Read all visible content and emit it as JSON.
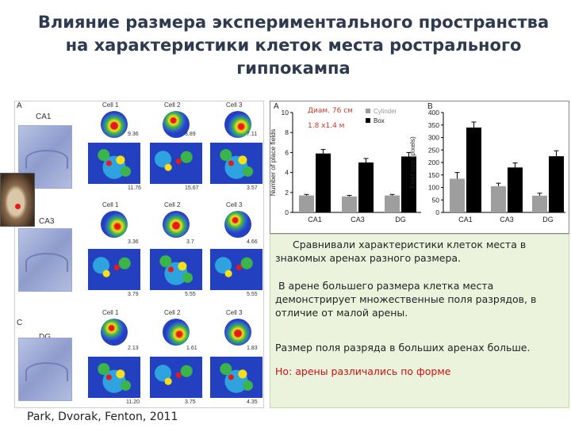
{
  "title_lines": [
    "Влияние размера экспериментального пространства",
    "на характеристики клеток места ростральнoго",
    "гиппокампа"
  ],
  "figure_left": {
    "panel_letters": [
      "A",
      "B",
      "C"
    ],
    "regions": [
      "CA1",
      "CA3",
      "DG"
    ],
    "cell_labels": [
      "Cell 1",
      "Cell 2",
      "Cell 3"
    ],
    "rows": [
      {
        "small_rates": [
          "9.36",
          "3.89",
          "7.11"
        ],
        "large_rates": [
          "11.76",
          "15.67",
          "3.57"
        ]
      },
      {
        "small_rates": [
          "3.36",
          "3.7",
          "4.66"
        ],
        "large_rates": [
          "3.79",
          "5.55",
          "5.55"
        ]
      },
      {
        "small_rates": [
          "2.13",
          "1.61",
          "1.83"
        ],
        "large_rates": [
          "11.20",
          "3.75",
          "4.35"
        ]
      }
    ]
  },
  "citation": "Park, Dvorak, Fenton, 2011",
  "dimension_note": {
    "cylinder": "Диам. 76 см",
    "box": "1.8 х1.4 м"
  },
  "chart_data": [
    {
      "type": "bar",
      "panel": "A",
      "ylabel": "Number of place fields",
      "categories": [
        "CA1",
        "CA3",
        "DG"
      ],
      "ylim": [
        0,
        10
      ],
      "yticks": [
        "0",
        "2",
        "4",
        "6",
        "8",
        "10"
      ],
      "legend": [
        "Cylinder",
        "Box"
      ],
      "legend_position": "top-right",
      "series": [
        {
          "name": "Cylinder",
          "color": "#9e9e9e",
          "values": [
            1.7,
            1.6,
            1.7
          ],
          "errors": [
            0.1,
            0.1,
            0.1
          ]
        },
        {
          "name": "Box",
          "color": "#000000",
          "values": [
            5.9,
            5.0,
            5.6
          ],
          "errors": [
            0.4,
            0.4,
            0.4
          ]
        }
      ]
    },
    {
      "type": "bar",
      "panel": "B",
      "ylabel": "Field size (pixels)",
      "categories": [
        "CA1",
        "CA3",
        "DG"
      ],
      "ylim": [
        0,
        400
      ],
      "yticks": [
        "0",
        "50",
        "100",
        "150",
        "200",
        "250",
        "300",
        "350",
        "400"
      ],
      "series": [
        {
          "name": "Cylinder",
          "color": "#9e9e9e",
          "values": [
            135,
            105,
            67
          ],
          "errors": [
            25,
            12,
            10
          ]
        },
        {
          "name": "Box",
          "color": "#000000",
          "values": [
            340,
            180,
            225
          ],
          "errors": [
            22,
            18,
            22
          ]
        }
      ]
    }
  ],
  "text_panel": [
    "Сравнивали характеристики клеток места в знакомых аренах разного размера.",
    "В арене большего размера клетка места демонстрирует множественные поля разрядов, в отличие от малой арены.",
    "Размер поля разряда в больших аренах больше.",
    "Но: арены различались по форме"
  ],
  "colors": {
    "title": "#2e3a4f",
    "text_bg": "#ebf3dc",
    "highlight": "#cc1111"
  }
}
